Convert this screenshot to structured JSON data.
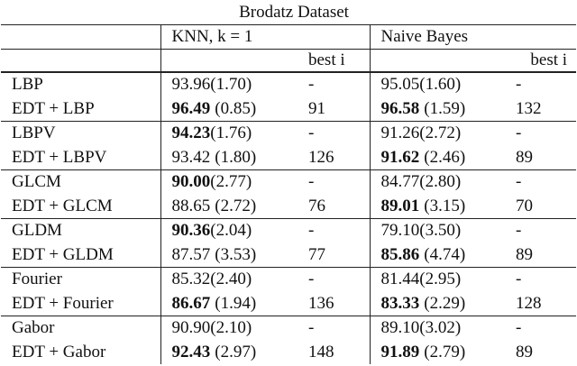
{
  "title": "Brodatz Dataset",
  "headers": [
    "KNN, k = 1",
    "Naive Bayes"
  ],
  "subheaders": [
    "best i",
    "best i"
  ],
  "groups": [
    {
      "rows": [
        {
          "name": "LBP",
          "knn": {
            "mean": "93.96",
            "sd": "(1.70)",
            "bold": false
          },
          "knn_best_i": "-",
          "nb": {
            "mean": "95.05",
            "sd": "(1.60)",
            "bold": false
          },
          "nb_best_i": "-"
        },
        {
          "name": "EDT + LBP",
          "knn": {
            "mean": "96.49",
            "sd": "(0.85)",
            "bold": true
          },
          "knn_best_i": "91",
          "nb": {
            "mean": "96.58",
            "sd": "(1.59)",
            "bold": true
          },
          "nb_best_i": "132"
        }
      ]
    },
    {
      "rows": [
        {
          "name": "LBPV",
          "knn": {
            "mean": "94.23",
            "sd": "(1.76)",
            "bold": true
          },
          "knn_best_i": "-",
          "nb": {
            "mean": "91.26",
            "sd": "(2.72)",
            "bold": false
          },
          "nb_best_i": "-"
        },
        {
          "name": "EDT + LBPV",
          "knn": {
            "mean": "93.42",
            "sd": "(1.80)",
            "bold": false
          },
          "knn_best_i": "126",
          "nb": {
            "mean": "91.62",
            "sd": "(2.46)",
            "bold": true
          },
          "nb_best_i": "89"
        }
      ]
    },
    {
      "rows": [
        {
          "name": "GLCM",
          "knn": {
            "mean": "90.00",
            "sd": "(2.77)",
            "bold": true
          },
          "knn_best_i": "-",
          "nb": {
            "mean": "84.77",
            "sd": "(2.80)",
            "bold": false
          },
          "nb_best_i": "-"
        },
        {
          "name": "EDT + GLCM",
          "knn": {
            "mean": "88.65",
            "sd": "(2.72)",
            "bold": false
          },
          "knn_best_i": "76",
          "nb": {
            "mean": "89.01",
            "sd": "(3.15)",
            "bold": true
          },
          "nb_best_i": "70"
        }
      ]
    },
    {
      "rows": [
        {
          "name": "GLDM",
          "knn": {
            "mean": "90.36",
            "sd": "(2.04)",
            "bold": true
          },
          "knn_best_i": "-",
          "nb": {
            "mean": "79.10",
            "sd": "(3.50)",
            "bold": false
          },
          "nb_best_i": "-"
        },
        {
          "name": "EDT + GLDM",
          "knn": {
            "mean": "87.57",
            "sd": "(3.53)",
            "bold": false
          },
          "knn_best_i": "77",
          "nb": {
            "mean": "85.86",
            "sd": "(4.74)",
            "bold": true
          },
          "nb_best_i": "89"
        }
      ]
    },
    {
      "rows": [
        {
          "name": "Fourier",
          "knn": {
            "mean": "85.32",
            "sd": "(2.40)",
            "bold": false
          },
          "knn_best_i": "-",
          "nb": {
            "mean": "81.44",
            "sd": "(2.95)",
            "bold": false
          },
          "nb_best_i": "-"
        },
        {
          "name": "EDT + Fourier",
          "knn": {
            "mean": "86.67",
            "sd": "(1.94)",
            "bold": true
          },
          "knn_best_i": "136",
          "nb": {
            "mean": "83.33",
            "sd": "(2.29)",
            "bold": true
          },
          "nb_best_i": "128"
        }
      ]
    },
    {
      "rows": [
        {
          "name": "Gabor",
          "knn": {
            "mean": "90.90",
            "sd": "(2.10)",
            "bold": false
          },
          "knn_best_i": "-",
          "nb": {
            "mean": "89.10",
            "sd": "(3.02)",
            "bold": false
          },
          "nb_best_i": "-"
        },
        {
          "name": "EDT + Gabor",
          "knn": {
            "mean": "92.43",
            "sd": "(2.97)",
            "bold": true
          },
          "knn_best_i": "148",
          "nb": {
            "mean": "91.89",
            "sd": "(2.79)",
            "bold": true
          },
          "nb_best_i": "89"
        }
      ]
    }
  ]
}
